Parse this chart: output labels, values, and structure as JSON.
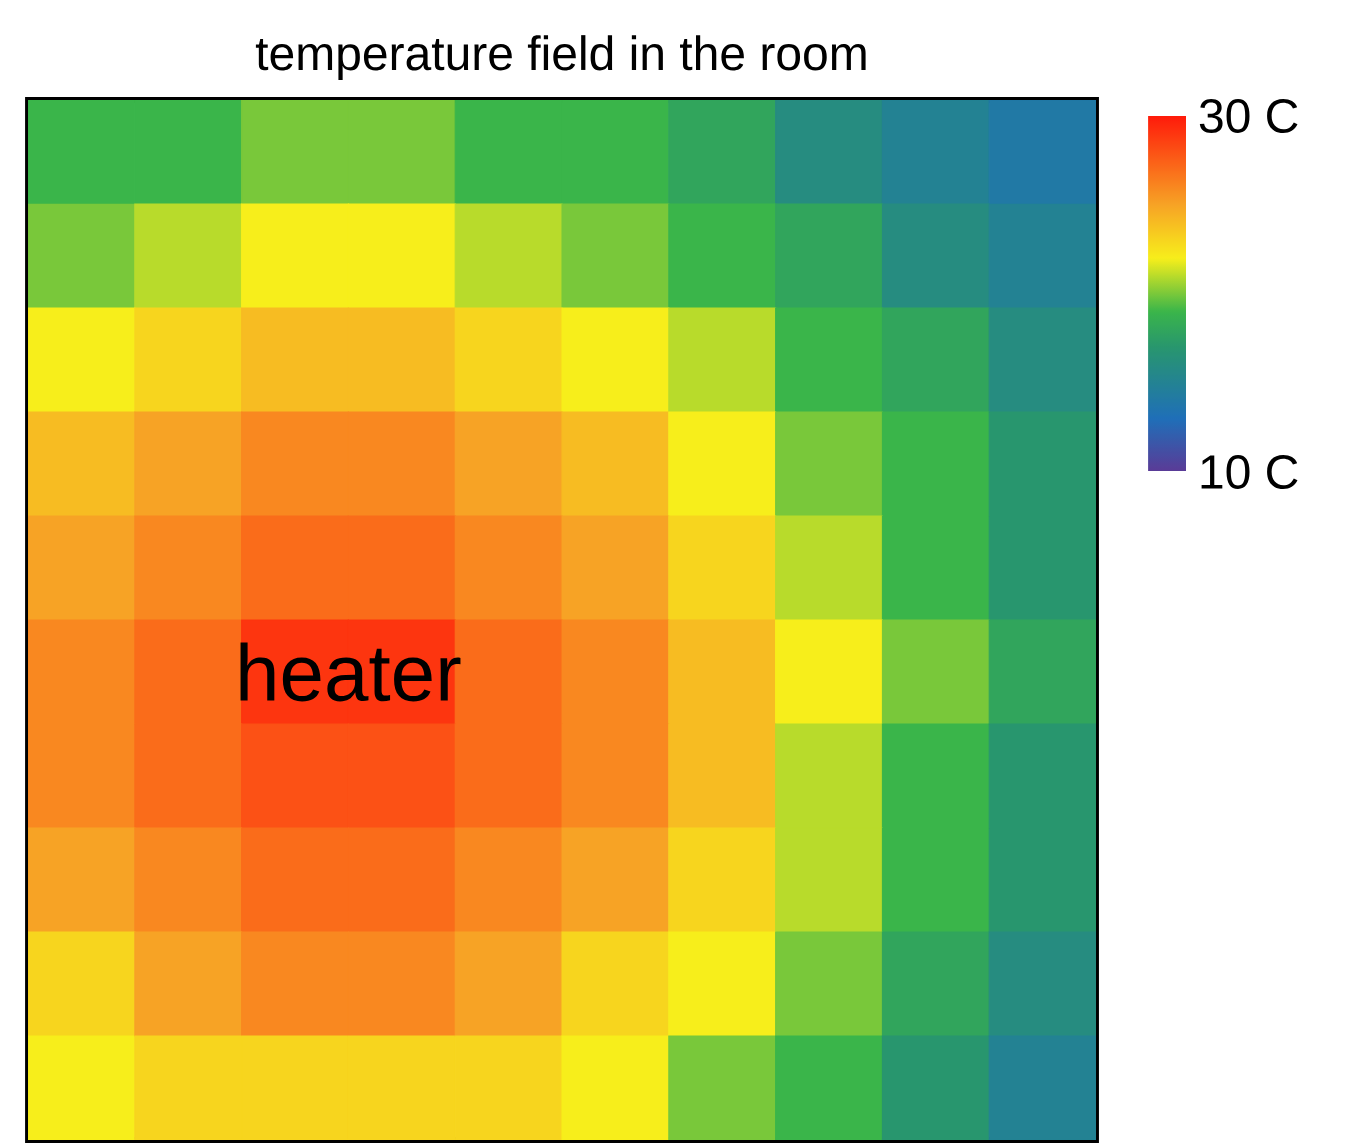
{
  "chart_data": {
    "type": "heatmap",
    "title": "temperature field in the room",
    "annotations": [
      "heater"
    ],
    "categories": [
      null,
      null,
      null,
      null,
      null,
      null,
      null,
      null,
      null,
      null
    ],
    "y_categories": [
      null,
      null,
      null,
      null,
      null,
      null,
      null,
      null,
      null,
      null
    ],
    "cells": [
      [
        19,
        19,
        20,
        20,
        19,
        19,
        18,
        16,
        15,
        14
      ],
      [
        20,
        21,
        22,
        22,
        21,
        20,
        19,
        18,
        16,
        15
      ],
      [
        22,
        23,
        24,
        24,
        23,
        22,
        21,
        19,
        18,
        16
      ],
      [
        24,
        25,
        26,
        26,
        25,
        24,
        22,
        20,
        19,
        17
      ],
      [
        25,
        26,
        27,
        27,
        26,
        25,
        23,
        21,
        19,
        17
      ],
      [
        26,
        27,
        29,
        29,
        27,
        26,
        24,
        22,
        20,
        18
      ],
      [
        26,
        27,
        28,
        28,
        27,
        26,
        24,
        21,
        19,
        17
      ],
      [
        25,
        26,
        27,
        27,
        26,
        25,
        23,
        21,
        19,
        17
      ],
      [
        23,
        25,
        26,
        26,
        25,
        23,
        22,
        20,
        18,
        16
      ],
      [
        22,
        23,
        23,
        23,
        23,
        22,
        20,
        19,
        17,
        15
      ]
    ],
    "clim": [
      10,
      30
    ],
    "cticks": [
      {
        "value": 10,
        "label": "10 C"
      },
      {
        "value": 30,
        "label": "30 C"
      }
    ]
  }
}
